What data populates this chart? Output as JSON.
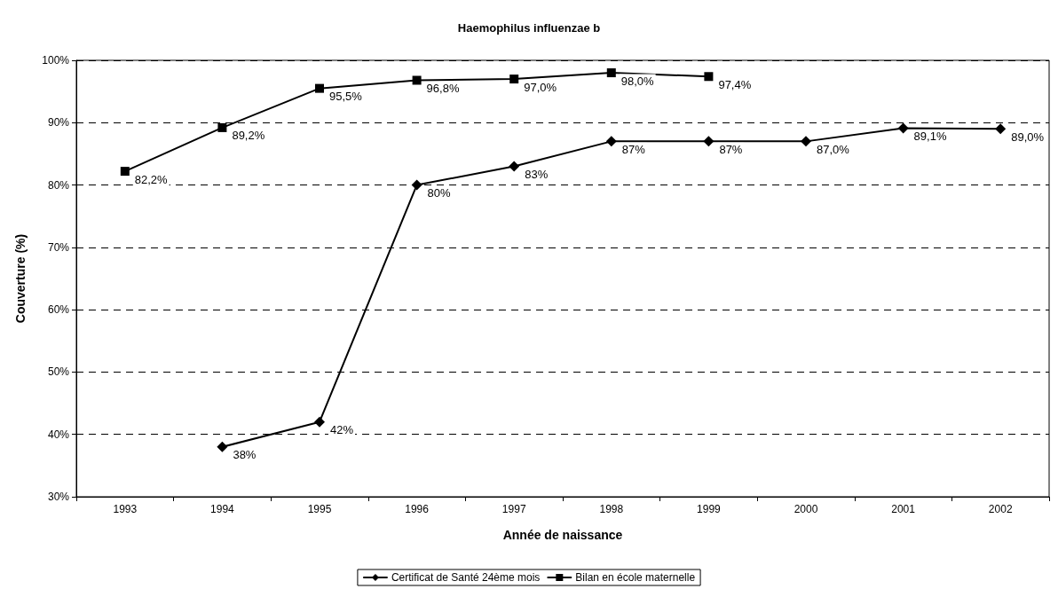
{
  "chart_data": {
    "type": "line",
    "title": "Haemophilus influenzae b",
    "xlabel": "Année de naissance",
    "ylabel": "Couverture (%)",
    "categories": [
      "1993",
      "1994",
      "1995",
      "1996",
      "1997",
      "1998",
      "1999",
      "2000",
      "2001",
      "2002"
    ],
    "series": [
      {
        "name": "Certificat de Santé 24ème mois",
        "color": "#000000",
        "marker": "diamond",
        "values": [
          null,
          38,
          42,
          80,
          83,
          87,
          87,
          87.0,
          89.1,
          89.0
        ],
        "value_labels": [
          null,
          "38%",
          "42%",
          "80%",
          "83%",
          "87%",
          "87%",
          "87,0%",
          "89,1%",
          "89,0%"
        ]
      },
      {
        "name": "Bilan en école maternelle",
        "color": "#000000",
        "marker": "square",
        "values": [
          82.2,
          89.2,
          95.5,
          96.8,
          97.0,
          98.0,
          97.4,
          null,
          null,
          null
        ],
        "value_labels": [
          "82,2%",
          "89,2%",
          "95,5%",
          "96,8%",
          "97,0%",
          "98,0%",
          "97,4%",
          null,
          null,
          null
        ]
      }
    ],
    "ylim": [
      30,
      100
    ],
    "yticks": [
      {
        "value": 30,
        "label": "30%"
      },
      {
        "value": 40,
        "label": "40%"
      },
      {
        "value": 50,
        "label": "50%"
      },
      {
        "value": 60,
        "label": "60%"
      },
      {
        "value": 70,
        "label": "70%"
      },
      {
        "value": 80,
        "label": "80%"
      },
      {
        "value": 90,
        "label": "90%"
      },
      {
        "value": 100,
        "label": "100%"
      }
    ],
    "grid": "y",
    "line_style": "solid",
    "legend": "bottom"
  }
}
